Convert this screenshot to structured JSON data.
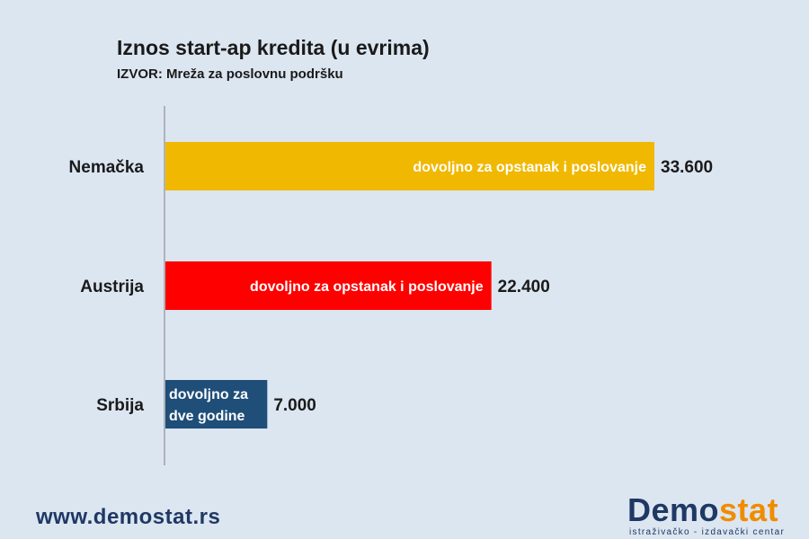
{
  "chart_data": {
    "type": "bar",
    "orientation": "horizontal",
    "title": "Iznos start-ap kredita (u evrima)",
    "subtitle": "IZVOR: Mreža za poslovnu podršku",
    "categories": [
      "Nemačka",
      "Austrija",
      "Srbija"
    ],
    "values": [
      33600,
      22400,
      7000
    ],
    "value_labels": [
      "33.600",
      "22.400",
      "7.000"
    ],
    "bar_annotations": [
      [
        "dovoljno  za opstanak  i poslovanje"
      ],
      [
        "dovoljno  za opstanak  i poslovanje"
      ],
      [
        "dovoljno  za",
        "dve godine"
      ]
    ],
    "bar_colors": [
      "#f0b800",
      "#ff0000",
      "#1f4e79"
    ],
    "xlim": [
      0,
      33600
    ],
    "grid": false,
    "legend": "none"
  },
  "footer": {
    "url": "www.demostat.rs",
    "logo_part1": "Demo",
    "logo_part2": "stat",
    "logo_tagline": "istraživačko - izdavački  centar",
    "logo_color_dark": "#1f3864",
    "logo_color_accent": "#f08c00"
  }
}
